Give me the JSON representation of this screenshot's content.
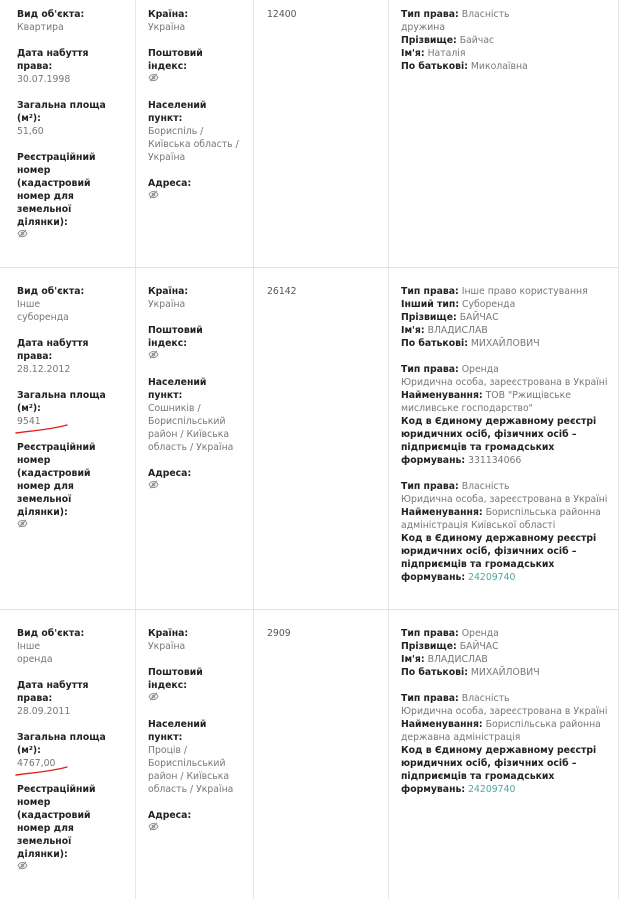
{
  "rows": [
    {
      "col1": [
        {
          "label": "Вид об'єкта:",
          "value": "Квартира"
        },
        {
          "label": "Дата набуття права:",
          "value": "30.07.1998"
        },
        {
          "label": "Загальна площа (м²):",
          "value": "51,60"
        },
        {
          "label": "Реєстраційний номер (кадастровий номер для земельної ділянки):",
          "icon": "hidden-eye-icon"
        }
      ],
      "col2": [
        {
          "label": "Країна:",
          "value": "Україна"
        },
        {
          "label": "Поштовий індекс:",
          "icon": "hidden-eye-icon"
        },
        {
          "label": "Населений пункт:",
          "value": "Бориспіль / Київська область / Україна"
        },
        {
          "label": "Адреса:",
          "icon": "hidden-eye-icon"
        }
      ],
      "col3": "12400",
      "col4": [
        [
          {
            "label": "Тип права:",
            "value": "Власність"
          },
          {
            "value": "дружина"
          },
          {
            "label": "Прізвище:",
            "value": "Байчас"
          },
          {
            "label": "Ім'я:",
            "value": "Наталія"
          },
          {
            "label": "По батькові:",
            "value": "Миколаївна"
          }
        ]
      ]
    },
    {
      "col1": [
        {
          "label": "Вид об'єкта:",
          "value": "Інше\nсуборенда"
        },
        {
          "label": "Дата набуття права:",
          "value": "28.12.2012"
        },
        {
          "label": "Загальна площа (м²):",
          "value": "9541",
          "underlined": true
        },
        {
          "label": "Реєстраційний номер (кадастровий номер для земельної ділянки):",
          "icon": "hidden-eye-icon"
        }
      ],
      "col2": [
        {
          "label": "Країна:",
          "value": "Україна"
        },
        {
          "label": "Поштовий індекс:",
          "icon": "hidden-eye-icon"
        },
        {
          "label": "Населений пункт:",
          "value": "Сошників / Бориспільський район / Київська область / Україна"
        },
        {
          "label": "Адреса:",
          "icon": "hidden-eye-icon"
        }
      ],
      "col3": "26142",
      "col4": [
        [
          {
            "label": "Тип права:",
            "value": "Інше право користування"
          },
          {
            "label": "Інший тип:",
            "value": "Суборенда"
          },
          {
            "label": "Прізвище:",
            "value": "БАЙЧАС"
          },
          {
            "label": "Ім'я:",
            "value": "ВЛАДИСЛАВ"
          },
          {
            "label": "По батькові:",
            "value": "МИХАЙЛОВИЧ"
          }
        ],
        [
          {
            "label": "Тип права:",
            "value": "Оренда"
          },
          {
            "value": "Юридична особа, зареєстрована в Україні"
          },
          {
            "label": "Найменування:",
            "value": "ТОВ \"Ржищівське мисливське господарство\""
          },
          {
            "label": "Код в Єдиному державному реєстрі юридичних осіб, фізичних осіб – підприємців та громадських формувань:",
            "value": "331134066"
          }
        ],
        [
          {
            "label": "Тип права:",
            "value": "Власність"
          },
          {
            "value": "Юридична особа, зареєстрована в Україні"
          },
          {
            "label": "Найменування:",
            "value": "Бориспільська районна адміністрація Київської області"
          },
          {
            "label": "Код в Єдиному державному реєстрі юридичних осіб, фізичних осіб – підприємців та громадських формувань:",
            "value": "24209740",
            "link": true
          }
        ]
      ]
    },
    {
      "col1": [
        {
          "label": "Вид об'єкта:",
          "value": "Інше\nоренда"
        },
        {
          "label": "Дата набуття права:",
          "value": "28.09.2011"
        },
        {
          "label": "Загальна площа (м²):",
          "value": "4767,00",
          "underlined": true
        },
        {
          "label": "Реєстраційний номер (кадастровий номер для земельної ділянки):",
          "icon": "hidden-eye-icon"
        }
      ],
      "col2": [
        {
          "label": "Країна:",
          "value": "Україна"
        },
        {
          "label": "Поштовий індекс:",
          "icon": "hidden-eye-icon"
        },
        {
          "label": "Населений пункт:",
          "value": "Проців / Бориспільський район / Київська область / Україна"
        },
        {
          "label": "Адреса:",
          "icon": "hidden-eye-icon"
        }
      ],
      "col3": "2909",
      "col4": [
        [
          {
            "label": "Тип права:",
            "value": "Оренда"
          },
          {
            "label": "Прізвище:",
            "value": "БАЙЧАС"
          },
          {
            "label": "Ім'я:",
            "value": "ВЛАДИСЛАВ"
          },
          {
            "label": "По батькові:",
            "value": "МИХАЙЛОВИЧ"
          }
        ],
        [
          {
            "label": "Тип права:",
            "value": "Власність"
          },
          {
            "value": "Юридична особа, зареєстрована в Україні"
          },
          {
            "label": "Найменування:",
            "value": "Бориспільська районна державна адміністрація"
          },
          {
            "label": "Код в Єдиному державному реєстрі юридичних осіб, фізичних осіб – підприємців та громадських формувань:",
            "value": "24209740",
            "link": true
          }
        ]
      ]
    }
  ],
  "colors": {
    "label": "#222222",
    "value": "#777777",
    "link": "#4aa8a0",
    "annotation": "#e0201b"
  }
}
